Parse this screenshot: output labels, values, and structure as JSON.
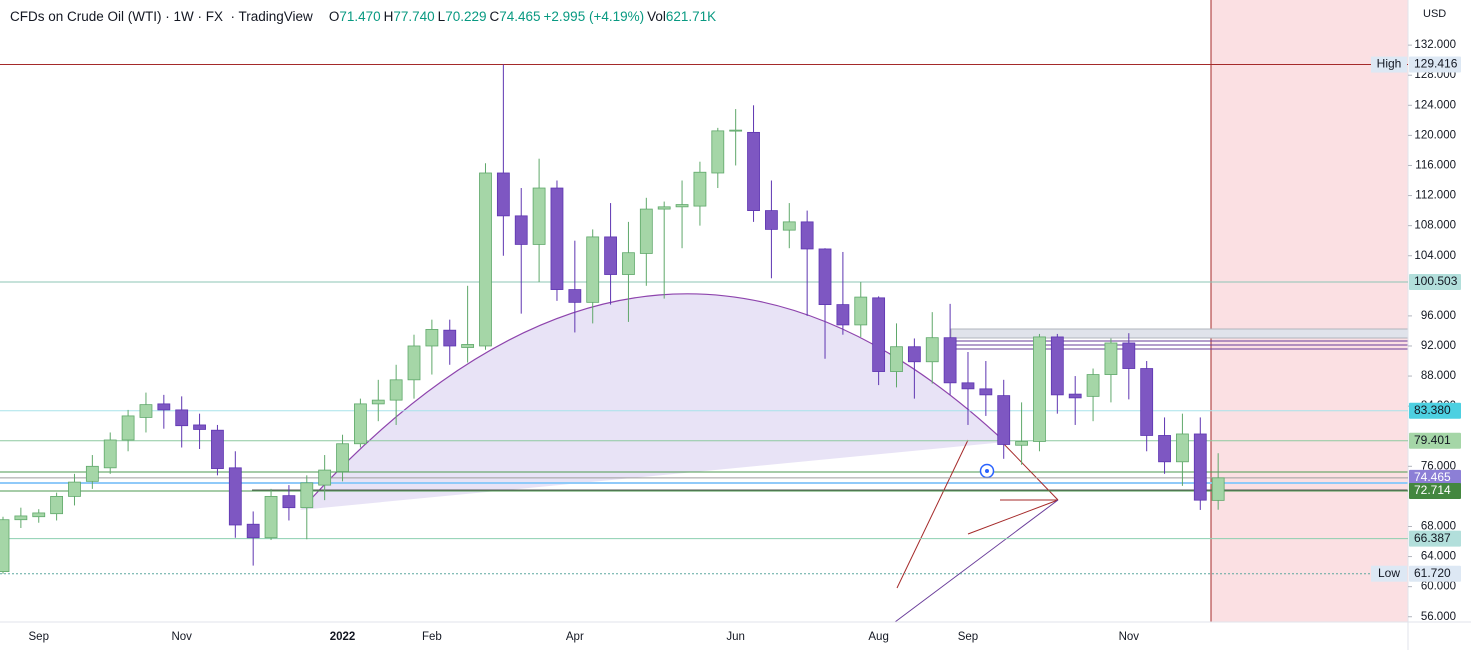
{
  "chart_data": {
    "type": "candlestick",
    "title": "CFDs on Crude Oil (WTI) · 1W · FX  · TradingView",
    "ohlc_legend": [
      {
        "key": "O",
        "value": "71.470"
      },
      {
        "key": "H",
        "value": "77.740"
      },
      {
        "key": "L",
        "value": "70.229"
      },
      {
        "key": "C",
        "value": "74.465"
      }
    ],
    "change": "+2.995 (+4.19%)",
    "volume_key": "Vol",
    "volume": "621.71K",
    "currency": "USD",
    "up_color": "#a5d6a7",
    "down_color": "#7e57c2",
    "grid": false,
    "categories": [
      null,
      null,
      "Sep",
      null,
      null,
      null,
      null,
      null,
      null,
      null,
      "Nov",
      null,
      null,
      null,
      null,
      null,
      null,
      null,
      null,
      "2022",
      null,
      null,
      null,
      null,
      "Feb",
      null,
      null,
      null,
      null,
      null,
      null,
      null,
      "Apr",
      null,
      null,
      null,
      null,
      null,
      null,
      null,
      null,
      "Jun",
      null,
      null,
      null,
      null,
      null,
      null,
      null,
      "Aug",
      null,
      null,
      null,
      null,
      "Sep",
      null,
      null,
      null,
      null,
      null,
      null,
      null,
      null,
      "Nov",
      null,
      null,
      null,
      null,
      null
    ],
    "open": [
      62.0,
      68.9,
      69.3,
      69.7,
      72.0,
      74.0,
      75.8,
      79.5,
      82.5,
      84.3,
      83.5,
      81.5,
      80.8,
      75.8,
      68.3,
      66.5,
      72.1,
      70.5,
      73.5,
      75.3,
      79.0,
      84.3,
      84.8,
      87.5,
      92.0,
      94.1,
      91.8,
      92.0,
      115.0,
      109.3,
      105.5,
      113.0,
      99.5,
      97.8,
      106.5,
      101.5,
      104.3,
      110.2,
      110.5,
      110.6,
      115.0,
      120.6,
      120.4,
      110.0,
      107.4,
      108.5,
      104.9,
      97.5,
      94.8,
      98.4,
      88.6,
      91.9,
      89.9,
      93.1,
      87.1,
      86.3,
      85.4,
      78.8,
      79.3,
      93.2,
      85.6,
      85.3,
      88.2,
      92.4,
      89.0,
      80.1,
      76.6,
      80.3,
      71.47
    ],
    "high": [
      69.3,
      70.5,
      70.3,
      72.5,
      75.0,
      77.5,
      80.5,
      83.5,
      85.8,
      85.5,
      85.3,
      83.0,
      81.5,
      78.0,
      70.0,
      73.0,
      73.5,
      74.8,
      77.5,
      80.2,
      85.0,
      87.5,
      89.5,
      93.5,
      95.5,
      95.5,
      100.0,
      116.3,
      129.416,
      113.0,
      116.9,
      114.0,
      106.0,
      107.5,
      111.0,
      108.5,
      111.7,
      111.2,
      114.0,
      116.5,
      121.0,
      123.5,
      124.0,
      114.0,
      111.0,
      110.0,
      105.0,
      104.5,
      100.5,
      98.6,
      95.0,
      93.0,
      96.5,
      97.6,
      91.2,
      90.0,
      87.5,
      84.5,
      93.6,
      93.6,
      88.0,
      89.0,
      93.0,
      93.7,
      90.0,
      82.5,
      83.0,
      82.5,
      77.74
    ],
    "low": [
      61.72,
      67.8,
      68.5,
      68.8,
      70.8,
      73.0,
      75.0,
      78.0,
      80.5,
      81.0,
      78.5,
      78.3,
      74.8,
      66.5,
      62.8,
      66.2,
      68.8,
      66.3,
      71.5,
      74.0,
      78.5,
      82.0,
      81.5,
      85.0,
      88.2,
      89.5,
      89.8,
      91.5,
      104.0,
      96.3,
      100.5,
      98.0,
      93.8,
      95.0,
      97.5,
      95.2,
      100.0,
      98.3,
      105.0,
      108.0,
      113.0,
      116.0,
      108.5,
      101.0,
      105.0,
      96.0,
      90.3,
      93.5,
      93.2,
      86.8,
      86.5,
      85.0,
      87.0,
      85.5,
      81.5,
      82.7,
      77.0,
      76.2,
      78.0,
      83.0,
      81.5,
      82.0,
      84.5,
      84.9,
      78.0,
      75.0,
      73.4,
      70.2,
      70.229
    ],
    "close": [
      68.9,
      69.4,
      69.8,
      72.0,
      73.9,
      76.0,
      79.5,
      82.7,
      84.2,
      83.5,
      81.4,
      80.9,
      75.7,
      68.2,
      66.5,
      72.0,
      70.5,
      73.8,
      75.5,
      79.0,
      84.3,
      84.8,
      87.5,
      92.0,
      94.2,
      92.0,
      92.2,
      115.0,
      109.3,
      105.5,
      113.0,
      99.5,
      97.8,
      106.5,
      101.5,
      104.4,
      110.2,
      110.5,
      110.8,
      115.1,
      120.6,
      120.7,
      110.0,
      107.5,
      108.5,
      104.9,
      97.5,
      94.8,
      98.5,
      88.6,
      91.9,
      89.9,
      93.1,
      87.1,
      86.3,
      85.5,
      78.9,
      79.3,
      93.2,
      85.5,
      85.1,
      88.2,
      92.4,
      89.0,
      80.1,
      76.6,
      80.3,
      71.5,
      74.465
    ],
    "ylim": [
      55.3,
      138
    ],
    "yticks": [
      {
        "value": 56,
        "label": "56.000"
      },
      {
        "value": 60,
        "label": "60.000"
      },
      {
        "value": 64,
        "label": "64.000"
      },
      {
        "value": 68,
        "label": "68.000"
      },
      {
        "value": 76,
        "label": "76.000"
      },
      {
        "value": 84,
        "label": "84.000"
      },
      {
        "value": 88,
        "label": "88.000"
      },
      {
        "value": 92,
        "label": "92.000"
      },
      {
        "value": 96,
        "label": "96.000"
      },
      {
        "value": 104,
        "label": "104.000"
      },
      {
        "value": 108,
        "label": "108.000"
      },
      {
        "value": 112,
        "label": "112.000"
      },
      {
        "value": 116,
        "label": "116.000"
      },
      {
        "value": 120,
        "label": "120.000"
      },
      {
        "value": 124,
        "label": "124.000"
      },
      {
        "value": 128,
        "label": "128.000"
      },
      {
        "value": 132,
        "label": "132.000"
      }
    ],
    "price_lines": [
      {
        "value": 129.416,
        "label": "129.416",
        "tag": "High",
        "color": "#a52a2a",
        "box": "#dde8f4",
        "text_color": "#131722"
      },
      {
        "value": 100.503,
        "label": "100.503",
        "color": "#8cc5b5",
        "box": "#b2dfdb",
        "text_color": "#131722"
      },
      {
        "value": 83.38,
        "label": "83.380",
        "color": "#a8e3ea",
        "box": "#4dd0e1",
        "text_color": "#131722"
      },
      {
        "value": 79.401,
        "label": "79.401",
        "color": "#8ec9a0",
        "box": "#a5d6a7",
        "text_color": "#131722"
      },
      {
        "value": 74.465,
        "label": "74.465",
        "color": "#9e9e9e",
        "box": "#8c7fd6",
        "text_color": "#ffffff"
      },
      {
        "value": 72.714,
        "label": "72.714",
        "color": "#4c9a50",
        "box": "#43873f",
        "text_color": "#ffffff"
      },
      {
        "value": 66.387,
        "label": "66.387",
        "color": "#8ccfb0",
        "box": "#b2dfdb",
        "text_color": "#131722"
      },
      {
        "value": 61.72,
        "label": "61.720",
        "tag": "Low",
        "color": "#5fa8a0",
        "box": "#dde8f4",
        "text_color": "#131722"
      }
    ]
  }
}
